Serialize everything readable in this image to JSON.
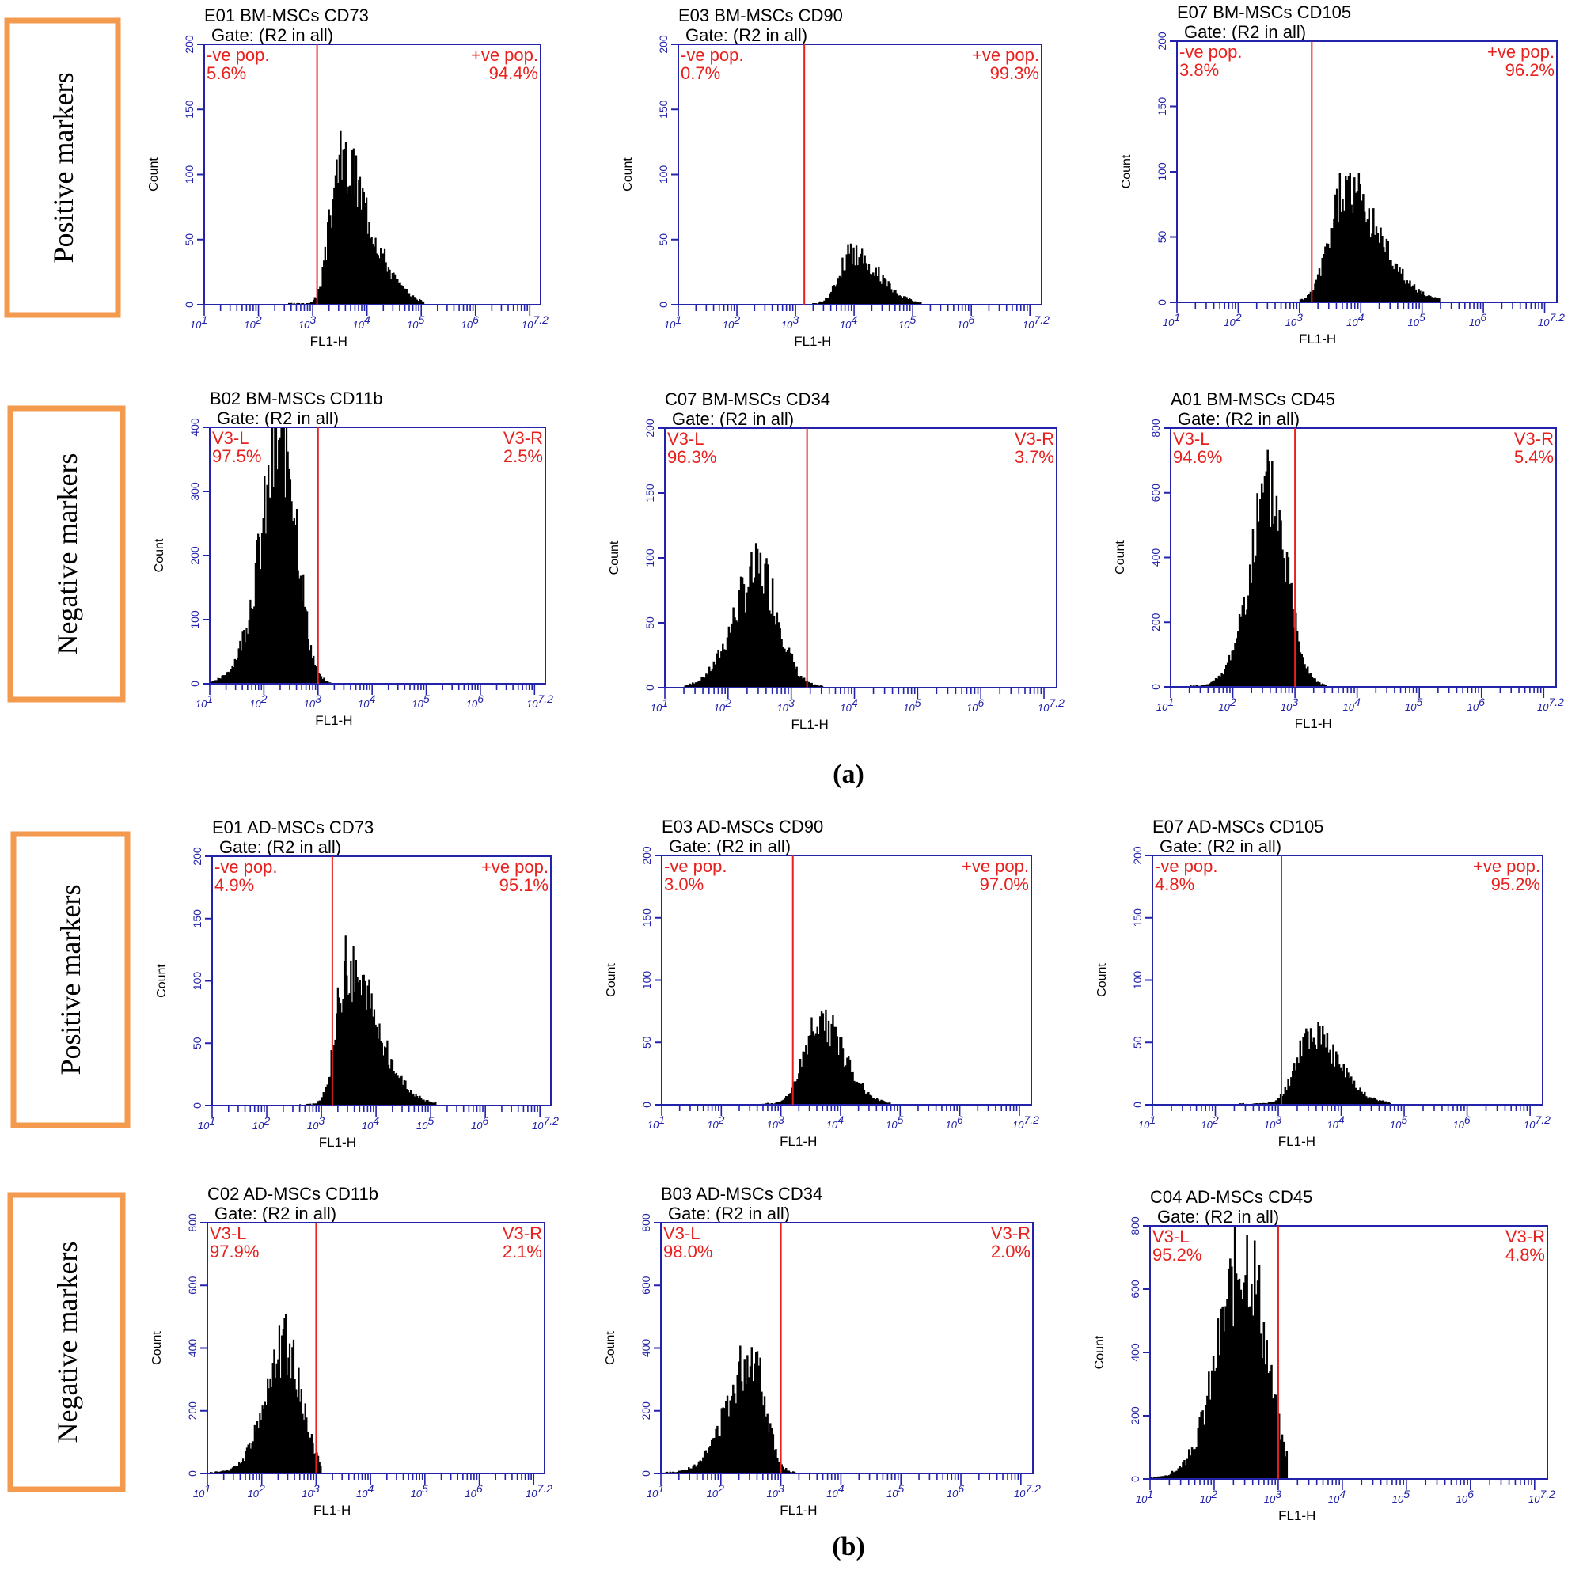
{
  "figure": {
    "sections": [
      {
        "label": "(a)",
        "rows": [
          {
            "label": "Positive markers"
          },
          {
            "label": "Negative markers"
          }
        ]
      },
      {
        "label": "(b)",
        "rows": [
          {
            "label": "Positive markers"
          },
          {
            "label": "Negative markers"
          }
        ]
      }
    ],
    "colors": {
      "axis": "#2222aa",
      "gate": "#e8201e",
      "histogram": "#000000",
      "row_box": "#f39a4e"
    }
  },
  "chart_data": [
    {
      "type": "histogram",
      "title": "E01 BM-MSCs  CD73",
      "gate": "Gate: (R2 in all)",
      "xlabel": "FL1-H",
      "ylabel": "Count",
      "ylim": [
        0,
        200
      ],
      "yticks": [
        0,
        50,
        100,
        150,
        200
      ],
      "xlim": [
        1,
        7.2
      ],
      "xticks": [
        "10",
        "10",
        "10",
        "10",
        "10",
        "10",
        "10"
      ],
      "xtick_exps": [
        "1",
        "2",
        "3",
        "4",
        "5",
        "6",
        "7.2"
      ],
      "xscale": "log",
      "marker_log": 3.08,
      "left_label": "-ve pop.",
      "left_value": "5.6%",
      "right_label": "+ve pop.",
      "right_value": "94.4%",
      "peak_log": 3.5,
      "peak_count": 112,
      "sigma_l": 0.18,
      "sigma_r": 0.55,
      "min_log": 2.55,
      "max_log": 5.05
    },
    {
      "type": "histogram",
      "title": "E03 BM-MSCs CD90",
      "gate": "Gate: (R2 in all)",
      "xlabel": "FL1-H",
      "ylabel": "Count",
      "ylim": [
        0,
        200
      ],
      "yticks": [
        0,
        50,
        100,
        150,
        200
      ],
      "xlim": [
        1,
        7.2
      ],
      "xticks": [
        "10",
        "10",
        "10",
        "10",
        "10",
        "10",
        "10"
      ],
      "xtick_exps": [
        "1",
        "2",
        "3",
        "4",
        "5",
        "6",
        "7.2"
      ],
      "xscale": "log",
      "marker_log": 3.15,
      "left_label": "-ve pop.",
      "left_value": "0.7%",
      "right_label": "+ve pop.",
      "right_value": "99.3%",
      "peak_log": 3.95,
      "peak_count": 40,
      "sigma_l": 0.2,
      "sigma_r": 0.45,
      "min_log": 3.3,
      "max_log": 5.15
    },
    {
      "type": "histogram",
      "title": "E07 BM-MSCs CD105",
      "gate": "Gate: (R2 in all)",
      "xlabel": "FL1-H",
      "ylabel": "Count",
      "ylim": [
        0,
        200
      ],
      "yticks": [
        0,
        50,
        100,
        150,
        200
      ],
      "xlim": [
        1,
        7.2
      ],
      "xticks": [
        "10",
        "10",
        "10",
        "10",
        "10",
        "10",
        "10"
      ],
      "xtick_exps": [
        "1",
        "2",
        "3",
        "4",
        "5",
        "6",
        "7.2"
      ],
      "xscale": "log",
      "marker_log": 3.2,
      "left_label": "-ve pop.",
      "left_value": "3.8%",
      "right_label": "+ve pop.",
      "right_value": "96.2%",
      "peak_log": 3.75,
      "peak_count": 88,
      "sigma_l": 0.25,
      "sigma_r": 0.55,
      "min_log": 3.0,
      "max_log": 5.3
    },
    {
      "type": "histogram",
      "title": "B02 BM-MSCs CD11b",
      "gate": "Gate: (R2 in all)",
      "xlabel": "FL1-H",
      "ylabel": "Count",
      "ylim": [
        0,
        400
      ],
      "yticks": [
        0,
        100,
        200,
        300,
        400
      ],
      "xlim": [
        1,
        7.2
      ],
      "xticks": [
        "10",
        "10",
        "10",
        "10",
        "10",
        "10",
        "10"
      ],
      "xtick_exps": [
        "1",
        "2",
        "3",
        "4",
        "5",
        "6",
        "7.2"
      ],
      "xscale": "log",
      "marker_log": 3.0,
      "left_label": "V3-L",
      "left_value": "97.5%",
      "right_label": "V3-R",
      "right_value": "2.5%",
      "peak_log": 2.38,
      "peak_count": 390,
      "sigma_l": 0.42,
      "sigma_r": 0.25,
      "min_log": 1.0,
      "max_log": 3.25
    },
    {
      "type": "histogram",
      "title": "C07 BM-MSCs CD34",
      "gate": "Gate: (R2 in all)",
      "xlabel": "FL1-H",
      "ylabel": "Count",
      "ylim": [
        0,
        200
      ],
      "yticks": [
        0,
        50,
        100,
        150,
        200
      ],
      "xlim": [
        1,
        7.2
      ],
      "xticks": [
        "10",
        "10",
        "10",
        "10",
        "10",
        "10",
        "10"
      ],
      "xtick_exps": [
        "1",
        "2",
        "3",
        "4",
        "5",
        "6",
        "7.2"
      ],
      "xscale": "log",
      "marker_log": 3.25,
      "left_label": "V3-L",
      "left_value": "96.3%",
      "right_label": "V3-R",
      "right_value": "3.7%",
      "peak_log": 2.5,
      "peak_count": 92,
      "sigma_l": 0.4,
      "sigma_r": 0.3,
      "min_log": 1.3,
      "max_log": 3.5
    },
    {
      "type": "histogram",
      "title": "A01 BM-MSCs CD45",
      "gate": "Gate: (R2 in all)",
      "xlabel": "FL1-H",
      "ylabel": "Count",
      "ylim": [
        0,
        800
      ],
      "yticks": [
        0,
        200,
        400,
        600,
        800
      ],
      "xlim": [
        1,
        7.2
      ],
      "xticks": [
        "10",
        "10",
        "10",
        "10",
        "10",
        "10",
        "10"
      ],
      "xtick_exps": [
        "1",
        "2",
        "3",
        "4",
        "5",
        "6",
        "7.2"
      ],
      "xscale": "log",
      "marker_log": 3.0,
      "left_label": "V3-L",
      "left_value": "94.6%",
      "right_label": "V3-R",
      "right_value": "5.4%",
      "peak_log": 2.6,
      "peak_count": 610,
      "sigma_l": 0.33,
      "sigma_r": 0.28,
      "min_log": 1.3,
      "max_log": 3.5
    },
    {
      "type": "histogram",
      "title": "E01 AD-MSCs  CD73",
      "gate": "Gate: (R2 in all)",
      "xlabel": "FL1-H",
      "ylabel": "Count",
      "ylim": [
        0,
        200
      ],
      "yticks": [
        0,
        50,
        100,
        150,
        200
      ],
      "xlim": [
        1,
        7.2
      ],
      "xticks": [
        "10",
        "10",
        "10",
        "10",
        "10",
        "10",
        "10"
      ],
      "xtick_exps": [
        "1",
        "2",
        "3",
        "4",
        "5",
        "6",
        "7.2"
      ],
      "xscale": "log",
      "marker_log": 3.2,
      "left_label": "-ve pop.",
      "left_value": "4.9%",
      "right_label": "+ve pop.",
      "right_value": "95.1%",
      "peak_log": 3.45,
      "peak_count": 112,
      "sigma_l": 0.18,
      "sigma_r": 0.55,
      "min_log": 2.6,
      "max_log": 5.1
    },
    {
      "type": "histogram",
      "title": "E03 AD-MSCs CD90",
      "gate": "Gate: (R2 in all)",
      "xlabel": "FL1-H",
      "ylabel": "Count",
      "ylim": [
        0,
        200
      ],
      "yticks": [
        0,
        50,
        100,
        150,
        200
      ],
      "xlim": [
        1,
        7.2
      ],
      "xticks": [
        "10",
        "10",
        "10",
        "10",
        "10",
        "10",
        "10"
      ],
      "xtick_exps": [
        "1",
        "2",
        "3",
        "4",
        "5",
        "6",
        "7.2"
      ],
      "xscale": "log",
      "marker_log": 3.2,
      "left_label": "-ve pop.",
      "left_value": "3.0%",
      "right_label": "+ve pop.",
      "right_value": "97.0%",
      "peak_log": 3.65,
      "peak_count": 70,
      "sigma_l": 0.25,
      "sigma_r": 0.4,
      "min_log": 2.7,
      "max_log": 4.85
    },
    {
      "type": "histogram",
      "title": "E07 AD-MSCs CD105",
      "gate": "Gate: (R2 in all)",
      "xlabel": "FL1-H",
      "ylabel": "Count",
      "ylim": [
        0,
        200
      ],
      "yticks": [
        0,
        50,
        100,
        150,
        200
      ],
      "xlim": [
        1,
        7.2
      ],
      "xticks": [
        "10",
        "10",
        "10",
        "10",
        "10",
        "10",
        "10"
      ],
      "xtick_exps": [
        "1",
        "2",
        "3",
        "4",
        "5",
        "6",
        "7.2"
      ],
      "xscale": "log",
      "marker_log": 3.05,
      "left_label": "-ve pop.",
      "left_value": "4.8%",
      "right_label": "+ve pop.",
      "right_value": "95.2%",
      "peak_log": 3.5,
      "peak_count": 58,
      "sigma_l": 0.22,
      "sigma_r": 0.45,
      "min_log": 2.3,
      "max_log": 4.8
    },
    {
      "type": "histogram",
      "title": "C02 AD-MSCs CD11b",
      "gate": "Gate: (R2 in all)",
      "xlabel": "FL1-H",
      "ylabel": "Count",
      "ylim": [
        0,
        800
      ],
      "yticks": [
        0,
        200,
        400,
        600,
        800
      ],
      "xlim": [
        1,
        7.2
      ],
      "xticks": [
        "10",
        "10",
        "10",
        "10",
        "10",
        "10",
        "10"
      ],
      "xtick_exps": [
        "1",
        "2",
        "3",
        "4",
        "5",
        "6",
        "7.2"
      ],
      "xscale": "log",
      "marker_log": 3.0,
      "left_label": "V3-L",
      "left_value": "97.9%",
      "right_label": "V3-R",
      "right_value": "2.1%",
      "peak_log": 2.45,
      "peak_count": 420,
      "sigma_l": 0.38,
      "sigma_r": 0.28,
      "min_log": 1.0,
      "max_log": 3.1
    },
    {
      "type": "histogram",
      "title": "B03 AD-MSCs CD34",
      "gate": "Gate: (R2 in all)",
      "xlabel": "FL1-H",
      "ylabel": "Count",
      "ylim": [
        0,
        800
      ],
      "yticks": [
        0,
        200,
        400,
        600,
        800
      ],
      "xlim": [
        1,
        7.2
      ],
      "xticks": [
        "10",
        "10",
        "10",
        "10",
        "10",
        "10",
        "10"
      ],
      "xtick_exps": [
        "1",
        "2",
        "3",
        "4",
        "5",
        "6",
        "7.2"
      ],
      "xscale": "log",
      "marker_log": 3.0,
      "left_label": "V3-L",
      "left_value": "98.0%",
      "right_label": "V3-R",
      "right_value": "2.0%",
      "peak_log": 2.55,
      "peak_count": 390,
      "sigma_l": 0.42,
      "sigma_r": 0.2,
      "min_log": 1.0,
      "max_log": 3.25
    },
    {
      "type": "histogram",
      "title": "C04 AD-MSCs CD45",
      "gate": "Gate: (R2 in all)",
      "xlabel": "FL1-H",
      "ylabel": "Count",
      "ylim": [
        0,
        800
      ],
      "yticks": [
        0,
        200,
        400,
        600,
        800
      ],
      "xlim": [
        1,
        7.2
      ],
      "xticks": [
        "10",
        "10",
        "10",
        "10",
        "10",
        "10",
        "10"
      ],
      "xtick_exps": [
        "1",
        "2",
        "3",
        "4",
        "5",
        "6",
        "7.2"
      ],
      "xscale": "log",
      "marker_log": 3.0,
      "left_label": "V3-L",
      "left_value": "95.2%",
      "right_label": "V3-R",
      "right_value": "4.8%",
      "peak_log": 2.5,
      "peak_count": 730,
      "sigma_l": 0.42,
      "sigma_r": 0.3,
      "min_log": 1.0,
      "max_log": 3.15
    }
  ]
}
